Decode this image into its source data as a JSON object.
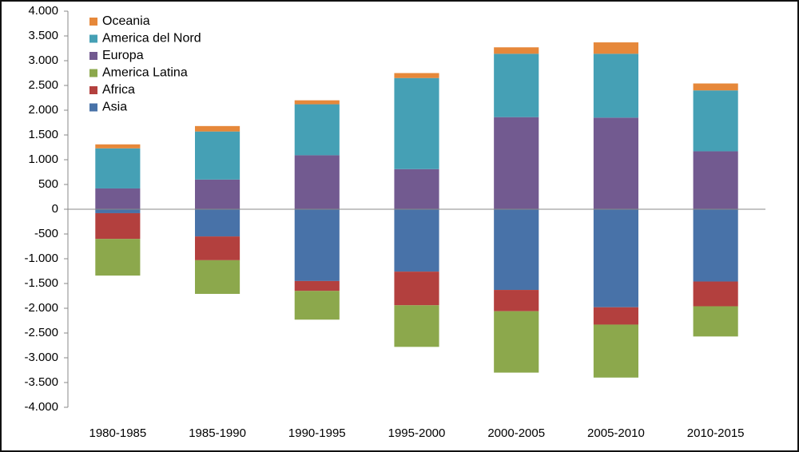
{
  "chart_data": {
    "type": "bar",
    "stacked": true,
    "categories": [
      "1980-1985",
      "1985-1990",
      "1990-1995",
      "1995-2000",
      "2000-2005",
      "2005-2010",
      "2010-2015"
    ],
    "series": [
      {
        "name": "Asia",
        "color": "#4872a8",
        "values": [
          -80,
          -550,
          -1450,
          -1260,
          -1630,
          -1980,
          -1460
        ]
      },
      {
        "name": "Africa",
        "color": "#b3403e",
        "values": [
          -520,
          -480,
          -200,
          -680,
          -430,
          -350,
          -500
        ]
      },
      {
        "name": "America Latina",
        "color": "#8ca84c",
        "values": [
          -740,
          -680,
          -580,
          -840,
          -1240,
          -1070,
          -610
        ]
      },
      {
        "name": "Europa",
        "color": "#725a90",
        "values": [
          420,
          600,
          1090,
          810,
          1860,
          1850,
          1170
        ]
      },
      {
        "name": "America del Nord",
        "color": "#45a0b5",
        "values": [
          810,
          970,
          1030,
          1840,
          1280,
          1290,
          1230
        ]
      },
      {
        "name": "Oceania",
        "color": "#e6883a",
        "values": [
          80,
          110,
          80,
          100,
          130,
          230,
          140
        ]
      }
    ],
    "ylim": [
      -4000,
      4000
    ],
    "yticks": [
      {
        "value": -4000,
        "label": "-4.000"
      },
      {
        "value": -3500,
        "label": "-3.500"
      },
      {
        "value": -3000,
        "label": "-3.000"
      },
      {
        "value": -2500,
        "label": "-2.500"
      },
      {
        "value": -2000,
        "label": "-2.000"
      },
      {
        "value": -1500,
        "label": "-1.500"
      },
      {
        "value": -1000,
        "label": "-1.000"
      },
      -500,
      0,
      500,
      {
        "value": 1000,
        "label": "1.000"
      },
      {
        "value": 1500,
        "label": "1.500"
      },
      {
        "value": 2000,
        "label": "2.000"
      },
      {
        "value": 2500,
        "label": "2.500"
      },
      {
        "value": 3000,
        "label": "3.000"
      },
      {
        "value": 3500,
        "label": "3.500"
      },
      {
        "value": 4000,
        "label": "4.000"
      }
    ],
    "grid": false,
    "legend": "upper-left"
  }
}
